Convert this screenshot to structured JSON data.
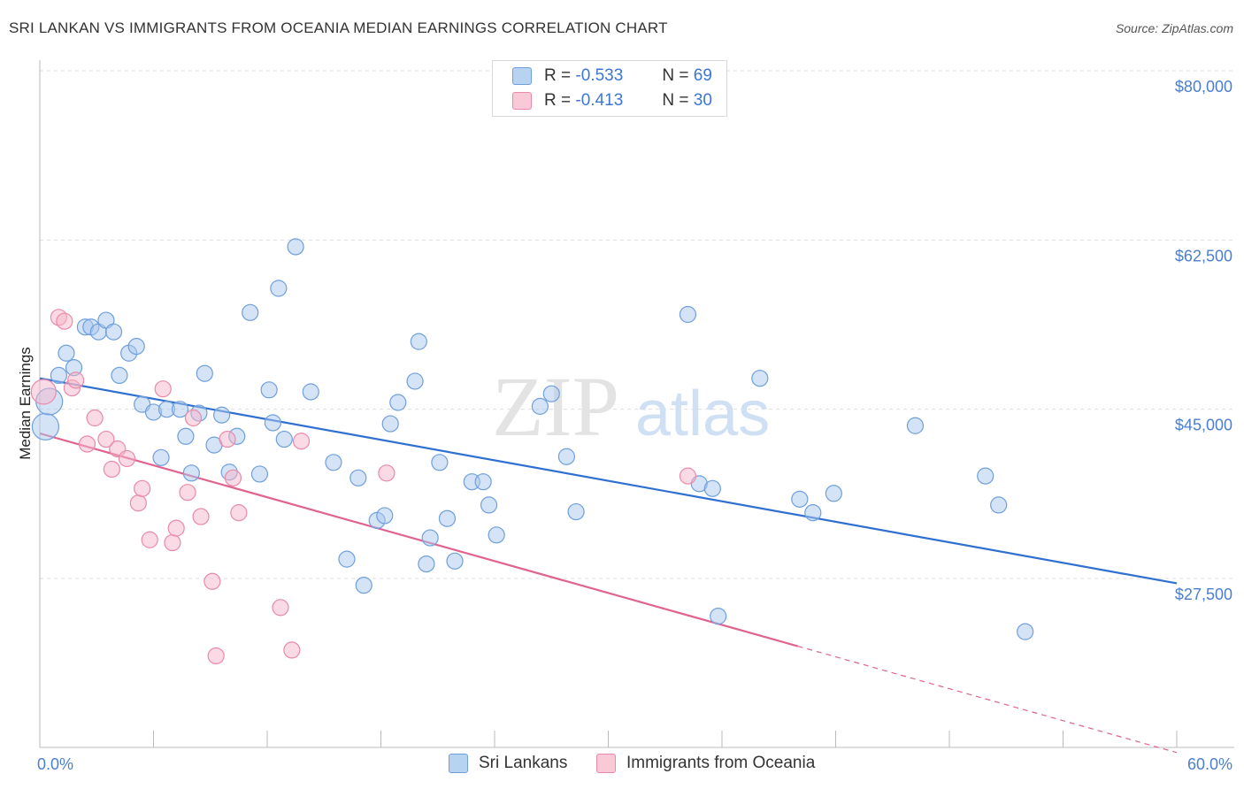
{
  "title": "SRI LANKAN VS IMMIGRANTS FROM OCEANIA MEDIAN EARNINGS CORRELATION CHART",
  "source": "Source: ZipAtlas.com",
  "watermark": {
    "zip": "ZIP",
    "atlas": "atlas"
  },
  "legend": {
    "r_label": "R =",
    "n_label": "N =",
    "rows": [
      {
        "r": "-0.533",
        "n": "69"
      },
      {
        "r": "-0.413",
        "n": "30"
      }
    ]
  },
  "colors": {
    "blue_fill": "#a9c7ee",
    "blue_stroke": "#6f9fdc",
    "blue_line": "#2f6fd1",
    "pink_fill": "#f6b6c9",
    "pink_stroke": "#e98aa8",
    "pink_line": "#e0628f",
    "axis_text": "#4a7fd0",
    "grid": "#dddddd"
  },
  "chart_data": {
    "type": "scatter",
    "title": "SRI LANKAN VS IMMIGRANTS FROM OCEANIA MEDIAN EARNINGS CORRELATION CHART",
    "xlabel": "",
    "ylabel": "Median Earnings",
    "xlim": [
      0,
      60
    ],
    "ylim": [
      10000,
      84000
    ],
    "x_tick_labels": [
      "0.0%",
      "60.0%"
    ],
    "y_ticks": [
      {
        "value": 80000,
        "label": "$80,000"
      },
      {
        "value": 62500,
        "label": "$62,500"
      },
      {
        "value": 45000,
        "label": "$45,000"
      },
      {
        "value": 27500,
        "label": "$27,500"
      }
    ],
    "series": [
      {
        "name": "Sri Lankans",
        "r": -0.533,
        "n": 69,
        "trend": {
          "x0": 0,
          "y0": 48200,
          "x1": 60,
          "y1": 27000
        },
        "points": [
          [
            0.3,
            43200
          ],
          [
            0.5,
            45800
          ],
          [
            1.0,
            48500
          ],
          [
            1.4,
            50800
          ],
          [
            1.8,
            49300
          ],
          [
            2.4,
            53500
          ],
          [
            2.7,
            53500
          ],
          [
            3.1,
            53000
          ],
          [
            3.5,
            54200
          ],
          [
            3.9,
            53000
          ],
          [
            4.2,
            48500
          ],
          [
            4.7,
            50800
          ],
          [
            5.1,
            51500
          ],
          [
            5.4,
            45500
          ],
          [
            6.0,
            44700
          ],
          [
            6.4,
            40000
          ],
          [
            6.7,
            45000
          ],
          [
            7.4,
            45000
          ],
          [
            7.7,
            42200
          ],
          [
            8.0,
            38400
          ],
          [
            8.4,
            44600
          ],
          [
            8.7,
            48700
          ],
          [
            9.2,
            41300
          ],
          [
            9.6,
            44400
          ],
          [
            10.0,
            38500
          ],
          [
            10.4,
            42200
          ],
          [
            11.1,
            55000
          ],
          [
            11.6,
            38300
          ],
          [
            12.1,
            47000
          ],
          [
            12.3,
            43600
          ],
          [
            12.6,
            57500
          ],
          [
            12.9,
            41900
          ],
          [
            13.5,
            61800
          ],
          [
            14.3,
            46800
          ],
          [
            15.5,
            39500
          ],
          [
            16.2,
            29500
          ],
          [
            16.8,
            37900
          ],
          [
            17.1,
            26800
          ],
          [
            17.8,
            33500
          ],
          [
            18.2,
            34000
          ],
          [
            18.5,
            43500
          ],
          [
            18.9,
            45700
          ],
          [
            19.8,
            47900
          ],
          [
            20.0,
            52000
          ],
          [
            20.4,
            29000
          ],
          [
            20.6,
            31700
          ],
          [
            21.1,
            39500
          ],
          [
            21.5,
            33700
          ],
          [
            21.9,
            29300
          ],
          [
            22.8,
            37500
          ],
          [
            23.4,
            37500
          ],
          [
            23.7,
            35100
          ],
          [
            24.1,
            32000
          ],
          [
            26.4,
            45300
          ],
          [
            27.0,
            46600
          ],
          [
            27.8,
            40100
          ],
          [
            28.3,
            34400
          ],
          [
            34.2,
            54800
          ],
          [
            34.8,
            37300
          ],
          [
            35.5,
            36800
          ],
          [
            35.8,
            23600
          ],
          [
            38.0,
            48200
          ],
          [
            40.1,
            35700
          ],
          [
            40.8,
            34300
          ],
          [
            41.9,
            36300
          ],
          [
            46.2,
            43300
          ],
          [
            49.9,
            38100
          ],
          [
            50.6,
            35100
          ],
          [
            52.0,
            22000
          ]
        ]
      },
      {
        "name": "Immigrants from Oceania",
        "r": -0.413,
        "n": 30,
        "trend": {
          "x0": 0,
          "y0": 42500,
          "x1": 40,
          "y1": 20500
        },
        "trend_dashed_to": {
          "x": 60,
          "y": 9500
        },
        "points": [
          [
            0.2,
            46800
          ],
          [
            1.0,
            54500
          ],
          [
            1.3,
            54100
          ],
          [
            1.7,
            47200
          ],
          [
            1.9,
            48000
          ],
          [
            2.5,
            41400
          ],
          [
            2.9,
            44100
          ],
          [
            3.5,
            41900
          ],
          [
            3.8,
            38800
          ],
          [
            4.1,
            40900
          ],
          [
            4.6,
            39900
          ],
          [
            5.2,
            35300
          ],
          [
            5.4,
            36800
          ],
          [
            5.8,
            31500
          ],
          [
            6.5,
            47100
          ],
          [
            7.0,
            31200
          ],
          [
            7.2,
            32700
          ],
          [
            7.8,
            36400
          ],
          [
            8.1,
            44100
          ],
          [
            8.5,
            33900
          ],
          [
            9.1,
            27200
          ],
          [
            9.3,
            19500
          ],
          [
            9.9,
            41900
          ],
          [
            10.2,
            37900
          ],
          [
            10.5,
            34300
          ],
          [
            12.7,
            24500
          ],
          [
            13.3,
            20100
          ],
          [
            13.8,
            41700
          ],
          [
            18.3,
            38400
          ],
          [
            34.2,
            38100
          ]
        ]
      }
    ]
  },
  "bottom_legend": [
    {
      "label": "Sri Lankans"
    },
    {
      "label": "Immigrants from Oceania"
    }
  ]
}
